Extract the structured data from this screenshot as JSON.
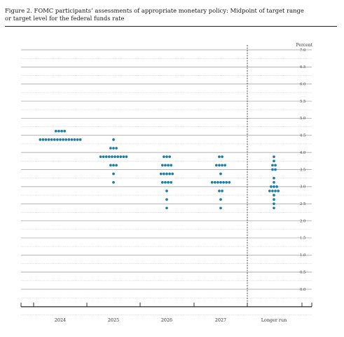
{
  "caption": {
    "line1": "Figure 2.  FOMC participants’ assessments of appropriate monetary policy: Midpoint of target range",
    "line2": "or target level for the federal funds rate"
  },
  "chart_data": {
    "type": "scatter",
    "title": "Figure 2.  FOMC participants’ assessments of appropriate monetary policy: Midpoint of target range or target level for the federal funds rate",
    "ylabel": "Percent",
    "ylim": [
      -0.625,
      7.0
    ],
    "y_ticks": [
      "0.0",
      "0.5",
      "1.0",
      "1.5",
      "2.0",
      "2.5",
      "3.0",
      "3.5",
      "4.0",
      "4.5",
      "5.0",
      "5.5",
      "6.0",
      "6.5",
      "7.0"
    ],
    "categories": [
      "2024",
      "2025",
      "2026",
      "2027",
      "Longer run"
    ],
    "gridlines": "every 0.25 percentage point; solid at each 0.5, dotted at odd quarters",
    "divider": "dashed vertical line before Longer run",
    "marker_color": "#1b7fa3",
    "dots": [
      {
        "category": "2024",
        "values": [
          {
            "rate": 4.625,
            "count": 4
          },
          {
            "rate": 4.375,
            "count": 15
          }
        ]
      },
      {
        "category": "2025",
        "values": [
          {
            "rate": 4.375,
            "count": 1
          },
          {
            "rate": 4.125,
            "count": 3
          },
          {
            "rate": 3.875,
            "count": 10
          },
          {
            "rate": 3.625,
            "count": 3
          },
          {
            "rate": 3.375,
            "count": 1
          },
          {
            "rate": 3.125,
            "count": 1
          }
        ]
      },
      {
        "category": "2026",
        "values": [
          {
            "rate": 3.875,
            "count": 3
          },
          {
            "rate": 3.625,
            "count": 4
          },
          {
            "rate": 3.375,
            "count": 5
          },
          {
            "rate": 3.125,
            "count": 4
          },
          {
            "rate": 2.875,
            "count": 1
          },
          {
            "rate": 2.625,
            "count": 1
          },
          {
            "rate": 2.375,
            "count": 1
          }
        ]
      },
      {
        "category": "2027",
        "values": [
          {
            "rate": 3.875,
            "count": 2
          },
          {
            "rate": 3.625,
            "count": 4
          },
          {
            "rate": 3.375,
            "count": 1
          },
          {
            "rate": 3.125,
            "count": 7
          },
          {
            "rate": 2.875,
            "count": 2
          },
          {
            "rate": 2.625,
            "count": 1
          },
          {
            "rate": 2.375,
            "count": 1
          }
        ]
      },
      {
        "category": "Longer run",
        "values": [
          {
            "rate": 3.875,
            "count": 1
          },
          {
            "rate": 3.75,
            "count": 1
          },
          {
            "rate": 3.625,
            "count": 2
          },
          {
            "rate": 3.5,
            "count": 2
          },
          {
            "rate": 3.25,
            "count": 1
          },
          {
            "rate": 3.125,
            "count": 1
          },
          {
            "rate": 3.0,
            "count": 3
          },
          {
            "rate": 2.875,
            "count": 4
          },
          {
            "rate": 2.75,
            "count": 1
          },
          {
            "rate": 2.625,
            "count": 1
          },
          {
            "rate": 2.5,
            "count": 1
          },
          {
            "rate": 2.375,
            "count": 1
          }
        ]
      }
    ]
  }
}
